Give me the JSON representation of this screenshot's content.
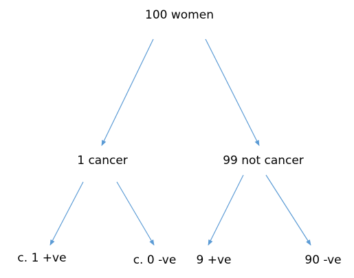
{
  "diagram": {
    "type": "probability-tree",
    "arrow_color": "#5b9bd5",
    "root": {
      "label": "100 women"
    },
    "branches": [
      {
        "label": "1 cancer",
        "children": [
          {
            "label": "c. 1 +ve"
          },
          {
            "label": "c. 0 -ve"
          }
        ]
      },
      {
        "label": "99 not cancer",
        "children": [
          {
            "label": "9 +ve"
          },
          {
            "label": "90 -ve"
          }
        ]
      }
    ]
  }
}
